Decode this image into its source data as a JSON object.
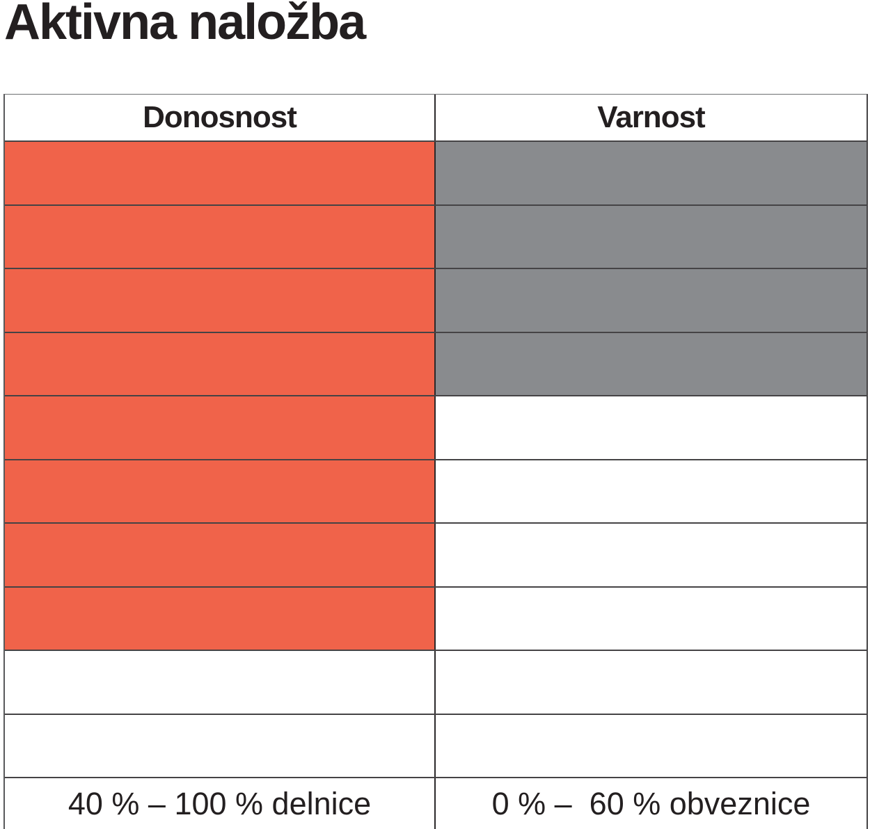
{
  "title": "Aktivna naložba",
  "table": {
    "columns": [
      "Donosnost",
      "Varnost"
    ],
    "footers": [
      "40 % – 100 % delnice",
      "0 % –  60 % obveznice"
    ]
  },
  "colors": {
    "donosnost_fill": "#f0634a",
    "varnost_fill": "#898b8e",
    "grid_line": "#454345",
    "text": "#231f20"
  },
  "chart_data": {
    "type": "table",
    "title": "Aktivna naložba",
    "categories": [
      "Donosnost",
      "Varnost"
    ],
    "total_rows": 10,
    "fill_direction": "from_top",
    "grid": true,
    "legend_position": "none",
    "series": [
      {
        "name": "Donosnost",
        "filled_rows": 8,
        "fill_color": "#f0634a",
        "range_label": "40 % – 100 % delnice"
      },
      {
        "name": "Varnost",
        "filled_rows": 4,
        "fill_color": "#898b8e",
        "range_label": "0 % –  60 % obveznice"
      }
    ]
  }
}
